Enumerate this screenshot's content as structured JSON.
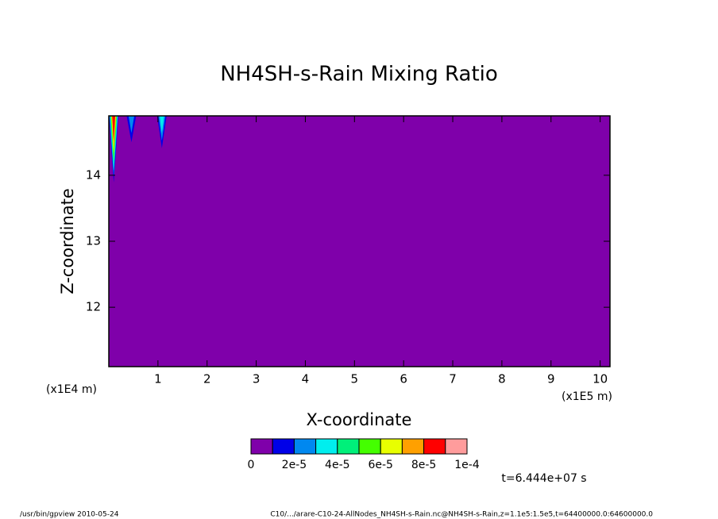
{
  "chart_data": {
    "type": "contour",
    "title": "NH4SH-s-Rain Mixing Ratio",
    "x_label": "X-coordinate",
    "y_label": "Z-coordinate",
    "x_unit_label": "(x1E5 m)",
    "y_unit_label": "(x1E4 m)",
    "xlim": [
      0,
      10.2
    ],
    "ylim": [
      11.1,
      14.9
    ],
    "xticks": [
      1,
      2,
      3,
      4,
      5,
      6,
      7,
      8,
      9,
      10
    ],
    "yticks": [
      12,
      13,
      14
    ],
    "levels": [
      0,
      1e-05,
      2e-05,
      3e-05,
      4e-05,
      5e-05,
      6e-05,
      7e-05,
      8e-05,
      9e-05,
      0.0001
    ],
    "colors": [
      "#7f00aa",
      "#0000e8",
      "#0088f0",
      "#00eeee",
      "#00f07a",
      "#44ff00",
      "#e8ff00",
      "#ffa000",
      "#ff0000",
      "#ff9c9c"
    ],
    "colorbar_ticks": [
      0,
      {
        "value": 2e-05,
        "label": "2e-5"
      },
      {
        "value": 4e-05,
        "label": "4e-5"
      },
      {
        "value": 6e-05,
        "label": "6e-5"
      },
      {
        "value": 8e-05,
        "label": "8e-5"
      },
      {
        "value": 0.0001,
        "label": "1e-4"
      }
    ],
    "spikes": [
      {
        "x": 0.1,
        "z_bottom": 13.89,
        "level": 8
      },
      {
        "x": 0.46,
        "z_bottom": 14.5,
        "level": 2
      },
      {
        "x": 1.08,
        "z_bottom": 14.41,
        "level": 3
      }
    ],
    "annotation": "t=6.444e+07 s"
  },
  "footer": {
    "left": "/usr/bin/gpview  2010-05-24",
    "right": "C10/.../arare-C10-24-AllNodes_NH4SH-s-Rain.nc@NH4SH-s-Rain,z=1.1e5:1.5e5,t=64400000.0:64600000.0"
  }
}
